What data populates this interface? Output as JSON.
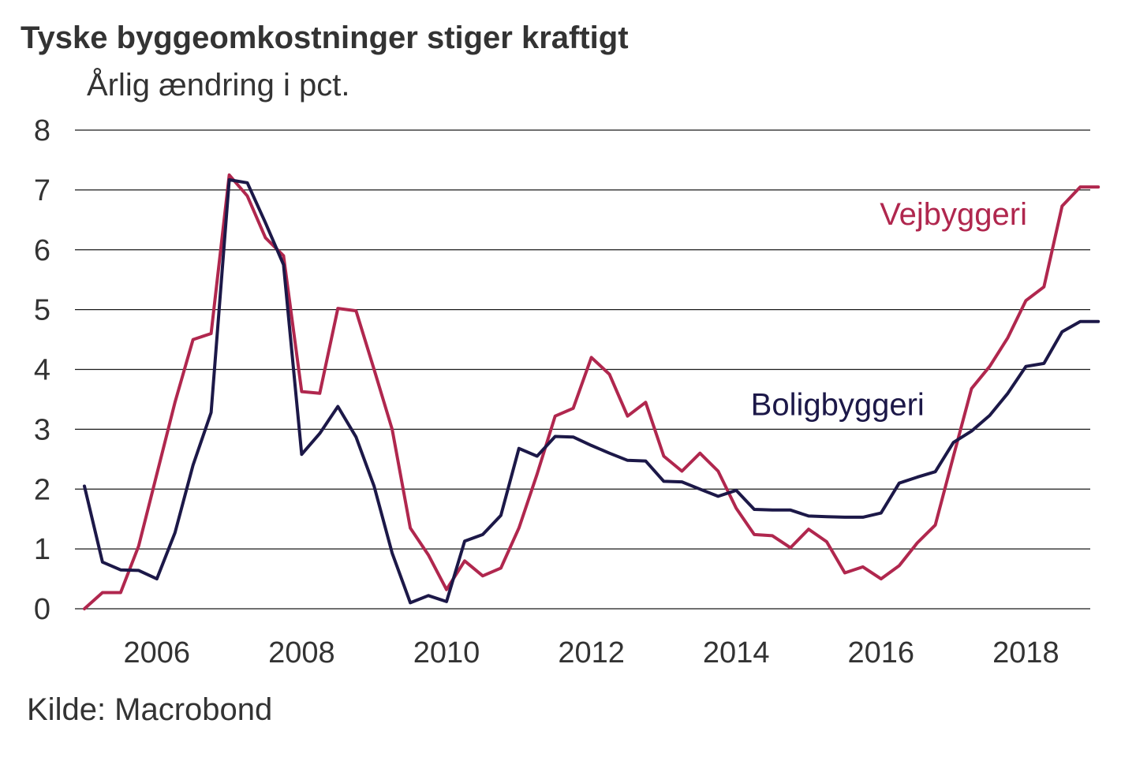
{
  "chart_data": {
    "type": "line",
    "title": "Tyske byggeomkostninger stiger kraftigt",
    "subtitle": "Årlig ændring i pct.",
    "source": "Kilde: Macrobond",
    "xlabel": "",
    "ylabel": "",
    "ylim": [
      0,
      8
    ],
    "xlim": [
      2005.0,
      2019.25
    ],
    "yticks": [
      "0",
      "1",
      "2",
      "3",
      "4",
      "5",
      "6",
      "7",
      "8"
    ],
    "xticks": [
      {
        "value": 2006,
        "label": "2006"
      },
      {
        "value": 2008,
        "label": "2008"
      },
      {
        "value": 2010,
        "label": "2010"
      },
      {
        "value": 2012,
        "label": "2012"
      },
      {
        "value": 2014,
        "label": "2014"
      },
      {
        "value": 2016,
        "label": "2016"
      },
      {
        "value": 2018,
        "label": "2018"
      }
    ],
    "grid": true,
    "series": [
      {
        "name": "Vejbyggeri",
        "color": "#b0274e",
        "x": [
          2005.0,
          2005.25,
          2005.5,
          2005.75,
          2006.0,
          2006.25,
          2006.5,
          2006.75,
          2007.0,
          2007.25,
          2007.5,
          2007.75,
          2008.0,
          2008.25,
          2008.5,
          2008.75,
          2009.0,
          2009.25,
          2009.5,
          2009.75,
          2010.0,
          2010.25,
          2010.5,
          2010.75,
          2011.0,
          2011.25,
          2011.5,
          2011.75,
          2012.0,
          2012.25,
          2012.5,
          2012.75,
          2013.0,
          2013.25,
          2013.5,
          2013.75,
          2014.0,
          2014.25,
          2014.5,
          2014.75,
          2015.0,
          2015.25,
          2015.5,
          2015.75,
          2016.0,
          2016.25,
          2016.5,
          2016.75,
          2017.0,
          2017.25,
          2017.5,
          2017.75,
          2018.0,
          2018.25,
          2018.5,
          2018.75,
          2019.0
        ],
        "values": [
          0.0,
          0.27,
          0.27,
          1.05,
          2.25,
          3.45,
          4.5,
          4.6,
          7.25,
          6.9,
          6.2,
          5.9,
          3.63,
          3.6,
          5.02,
          4.98,
          4.0,
          3.0,
          1.35,
          0.9,
          0.32,
          0.8,
          0.55,
          0.68,
          1.35,
          2.25,
          3.22,
          3.35,
          4.2,
          3.92,
          3.22,
          3.45,
          2.55,
          2.3,
          2.6,
          2.3,
          1.68,
          1.24,
          1.22,
          1.02,
          1.33,
          1.12,
          0.6,
          0.7,
          0.5,
          0.72,
          1.1,
          1.4,
          2.55,
          3.68,
          4.05,
          4.53,
          5.15,
          5.38,
          6.73,
          7.05,
          7.05
        ]
      },
      {
        "name": "Boligbyggeri",
        "color": "#1c1848",
        "x": [
          2005.0,
          2005.25,
          2005.5,
          2005.75,
          2006.0,
          2006.25,
          2006.5,
          2006.75,
          2007.0,
          2007.25,
          2007.5,
          2007.75,
          2008.0,
          2008.25,
          2008.5,
          2008.75,
          2009.0,
          2009.25,
          2009.5,
          2009.75,
          2010.0,
          2010.25,
          2010.5,
          2010.75,
          2011.0,
          2011.25,
          2011.5,
          2011.75,
          2012.0,
          2012.25,
          2012.5,
          2012.75,
          2013.0,
          2013.25,
          2013.5,
          2013.75,
          2014.0,
          2014.25,
          2014.5,
          2014.75,
          2015.0,
          2015.25,
          2015.5,
          2015.75,
          2016.0,
          2016.25,
          2016.5,
          2016.75,
          2017.0,
          2017.25,
          2017.5,
          2017.75,
          2018.0,
          2018.25,
          2018.5,
          2018.75,
          2019.0
        ],
        "values": [
          2.05,
          0.78,
          0.65,
          0.64,
          0.5,
          1.27,
          2.4,
          3.28,
          7.17,
          7.12,
          6.45,
          5.75,
          2.58,
          2.93,
          3.38,
          2.87,
          2.05,
          0.93,
          0.1,
          0.22,
          0.12,
          1.13,
          1.24,
          1.56,
          2.68,
          2.55,
          2.88,
          2.87,
          2.73,
          2.6,
          2.48,
          2.47,
          2.13,
          2.12,
          2.0,
          1.88,
          1.98,
          1.66,
          1.65,
          1.65,
          1.55,
          1.54,
          1.53,
          1.53,
          1.6,
          2.1,
          2.2,
          2.29,
          2.78,
          2.97,
          3.23,
          3.6,
          4.05,
          4.1,
          4.63,
          4.8,
          4.8
        ]
      }
    ],
    "annotations": [
      {
        "series": "Vejbyggeri",
        "text": "Vejbyggeri",
        "x": 2017.0,
        "y": 6.6
      },
      {
        "series": "Boligbyggeri",
        "text": "Boligbyggeri",
        "x": 2015.4,
        "y": 3.42
      }
    ]
  }
}
